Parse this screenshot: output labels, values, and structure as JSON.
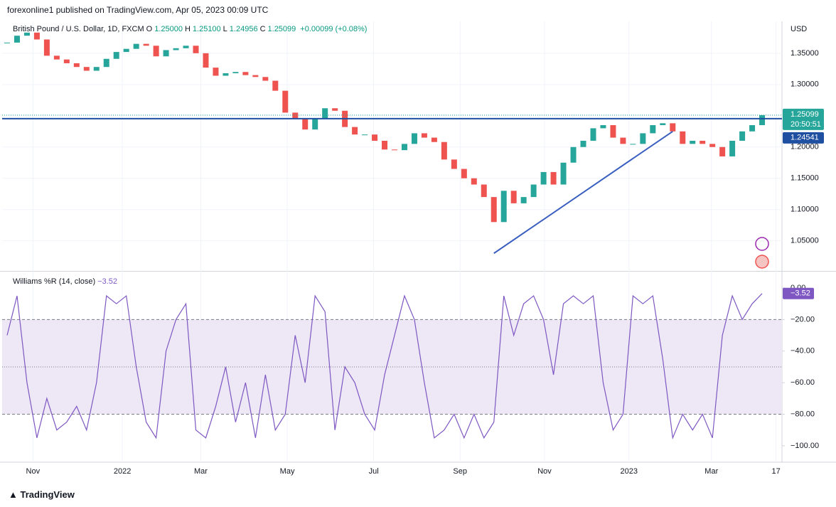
{
  "header": "forexonline1 published on TradingView.com, Apr 05, 2023 00:09 UTC",
  "footer": "TradingView",
  "chart_data": [
    {
      "type": "candlestick",
      "title": "British Pound / U.S. Dollar, 1D, FXCM",
      "ohlc": [
        {
          "label": "O",
          "value": "1.25000"
        },
        {
          "label": "H",
          "value": "1.25100"
        },
        {
          "label": "L",
          "value": "1.24956"
        },
        {
          "label": "C",
          "value": "1.25099"
        }
      ],
      "change": "+0.00099 (+0.08%)",
      "unit": "USD",
      "values": [
        1.367,
        1.378,
        1.383,
        1.372,
        1.346,
        1.34,
        1.334,
        1.328,
        1.322,
        1.328,
        1.341,
        1.352,
        1.357,
        1.365,
        1.362,
        1.345,
        1.355,
        1.358,
        1.362,
        1.35,
        1.327,
        1.314,
        1.318,
        1.32,
        1.315,
        1.312,
        1.306,
        1.29,
        1.255,
        1.245,
        1.228,
        1.245,
        1.262,
        1.258,
        1.232,
        1.22,
        1.22,
        1.21,
        1.196,
        1.195,
        1.205,
        1.222,
        1.215,
        1.208,
        1.18,
        1.165,
        1.15,
        1.14,
        1.12,
        1.08,
        1.13,
        1.11,
        1.12,
        1.14,
        1.16,
        1.14,
        1.175,
        1.2,
        1.21,
        1.23,
        1.235,
        1.215,
        1.205,
        1.205,
        1.222,
        1.235,
        1.238,
        1.225,
        1.205,
        1.21,
        1.205,
        1.2,
        1.185,
        1.21,
        1.225,
        1.235,
        1.251
      ],
      "up_color": "#26a69a",
      "down_color": "#ef5350",
      "xlim": [
        -0.5,
        78
      ],
      "xticks": [
        {
          "value": 2.6,
          "label": "Nov"
        },
        {
          "value": 11.6,
          "label": "2022"
        },
        {
          "value": 19.5,
          "label": "Mar"
        },
        {
          "value": 28.2,
          "label": "May"
        },
        {
          "value": 36.9,
          "label": "Jul"
        },
        {
          "value": 45.6,
          "label": "Sep"
        },
        {
          "value": 54.1,
          "label": "Nov"
        },
        {
          "value": 62.6,
          "label": "2023"
        },
        {
          "value": 70.9,
          "label": "Mar"
        },
        {
          "value": 77.4,
          "label": "17"
        }
      ],
      "ylim": [
        1.003,
        1.401
      ],
      "yticks": [
        {
          "value": 1.05,
          "label": "1.05000"
        },
        {
          "value": 1.1,
          "label": "1.10000"
        },
        {
          "value": 1.15,
          "label": "1.15000"
        },
        {
          "value": 1.2,
          "label": "1.20000"
        },
        {
          "value": 1.25,
          "label": "1.25000"
        },
        {
          "value": 1.3,
          "label": "1.30000"
        },
        {
          "value": 1.35,
          "label": "1.35000"
        }
      ],
      "last_price": {
        "value": 1.25099,
        "label": "1.25099"
      },
      "countdown": "20:50:51",
      "hline": {
        "value": 1.24541,
        "label": "1.24541",
        "color": "#1e4fa0"
      },
      "trendline": {
        "x": [
          49,
          67
        ],
        "values": [
          1.03,
          1.225
        ],
        "color": "#3a5fc0"
      },
      "grid": true
    },
    {
      "type": "line",
      "title": "Williams %R (14, close)",
      "last": {
        "value": -3.52,
        "label": "−3.52"
      },
      "color": "#7e57c2",
      "values": [
        -30,
        -5,
        -60,
        -95,
        -70,
        -90,
        -85,
        -75,
        -90,
        -60,
        -5,
        -10,
        -5,
        -50,
        -85,
        -95,
        -40,
        -20,
        -10,
        -90,
        -95,
        -75,
        -50,
        -85,
        -60,
        -95,
        -55,
        -90,
        -80,
        -30,
        -60,
        -5,
        -15,
        -90,
        -50,
        -60,
        -80,
        -90,
        -55,
        -30,
        -5,
        -20,
        -60,
        -95,
        -90,
        -80,
        -95,
        -80,
        -95,
        -85,
        -5,
        -30,
        -10,
        -5,
        -20,
        -55,
        -10,
        -5,
        -10,
        -5,
        -60,
        -90,
        -80,
        -5,
        -10,
        -5,
        -45,
        -95,
        -80,
        -90,
        -80,
        -95,
        -30,
        -5,
        -20,
        -10,
        -3.52
      ],
      "ylim": [
        -110.4,
        9.9
      ],
      "yticks": [
        {
          "value": 0,
          "label": "0.00"
        },
        {
          "value": -20,
          "label": "−20.00"
        },
        {
          "value": -40,
          "label": "−40.00"
        },
        {
          "value": -60,
          "label": "−60.00"
        },
        {
          "value": -80,
          "label": "−80.00"
        },
        {
          "value": -100,
          "label": "−100.00"
        }
      ],
      "levels": [
        -20,
        -50,
        -80
      ],
      "band_color": "#ede7f6"
    }
  ]
}
